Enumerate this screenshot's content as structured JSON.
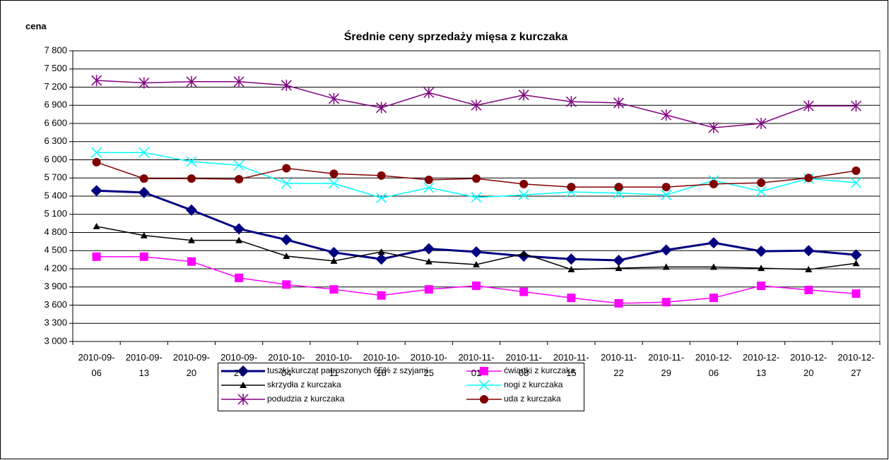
{
  "chart_data": {
    "type": "line",
    "title": "Średnie ceny sprzedaży mięsa z kurczaka",
    "y_label": "cena",
    "categories": [
      "2010-09-06",
      "2010-09-13",
      "2010-09-20",
      "2010-09-27",
      "2010-10-04",
      "2010-10-11",
      "2010-10-18",
      "2010-10-25",
      "2010-11-01",
      "2010-11-08",
      "2010-11-15",
      "2010-11-22",
      "2010-11-29",
      "2010-12-06",
      "2010-12-13",
      "2010-12-20",
      "2010-12-27"
    ],
    "ylim": [
      3000,
      7800
    ],
    "yticks": [
      {
        "value": 3000,
        "label": "3 000"
      },
      {
        "value": 3300,
        "label": "3 300"
      },
      {
        "value": 3600,
        "label": "3 600"
      },
      {
        "value": 3900,
        "label": "3 900"
      },
      {
        "value": 4200,
        "label": "4 200"
      },
      {
        "value": 4500,
        "label": "4 500"
      },
      {
        "value": 4800,
        "label": "4 800"
      },
      {
        "value": 5100,
        "label": "5 100"
      },
      {
        "value": 5400,
        "label": "5 400"
      },
      {
        "value": 5700,
        "label": "5 700"
      },
      {
        "value": 6000,
        "label": "6 000"
      },
      {
        "value": 6300,
        "label": "6 300"
      },
      {
        "value": 6600,
        "label": "6 600"
      },
      {
        "value": 6900,
        "label": "6 900"
      },
      {
        "value": 7200,
        "label": "7 200"
      },
      {
        "value": 7500,
        "label": "7 500"
      },
      {
        "value": 7800,
        "label": "7 800"
      }
    ],
    "grid": true,
    "series": [
      {
        "name": "tuszki kurcząt patroszonych 65% z szyjami",
        "color": "#000080",
        "marker": "diamond",
        "values": [
          5490,
          5460,
          5170,
          4860,
          4680,
          4470,
          4360,
          4530,
          4480,
          4410,
          4360,
          4340,
          4510,
          4630,
          4490,
          4500,
          4430
        ]
      },
      {
        "name": "ćwiartki z kurczaka",
        "color": "#ff00ff",
        "marker": "square",
        "values": [
          4400,
          4400,
          4320,
          4050,
          3940,
          3860,
          3760,
          3860,
          3920,
          3820,
          3720,
          3630,
          3650,
          3720,
          3920,
          3850,
          3790
        ]
      },
      {
        "name": "skrzydła z kurczaka",
        "color": "#000000",
        "marker": "triangle",
        "values": [
          4900,
          4750,
          4670,
          4670,
          4410,
          4330,
          4480,
          4320,
          4270,
          4450,
          4190,
          4210,
          4230,
          4230,
          4210,
          4190,
          4290
        ]
      },
      {
        "name": "nogi z kurczaka",
        "color": "#00ffff",
        "marker": "x",
        "values": [
          6120,
          6120,
          5970,
          5910,
          5610,
          5610,
          5370,
          5540,
          5380,
          5420,
          5470,
          5450,
          5420,
          5660,
          5480,
          5690,
          5620
        ]
      },
      {
        "name": "podudzia z kurczaka",
        "color": "#800080",
        "marker": "asterisk",
        "values": [
          7310,
          7270,
          7290,
          7290,
          7230,
          7010,
          6860,
          7110,
          6900,
          7070,
          6960,
          6940,
          6740,
          6530,
          6600,
          6890,
          6890
        ]
      },
      {
        "name": "uda z kurczaka",
        "color": "#800000",
        "marker": "circle",
        "values": [
          5960,
          5690,
          5690,
          5680,
          5860,
          5770,
          5740,
          5670,
          5690,
          5600,
          5550,
          5550,
          5550,
          5600,
          5620,
          5700,
          5820
        ]
      }
    ]
  }
}
